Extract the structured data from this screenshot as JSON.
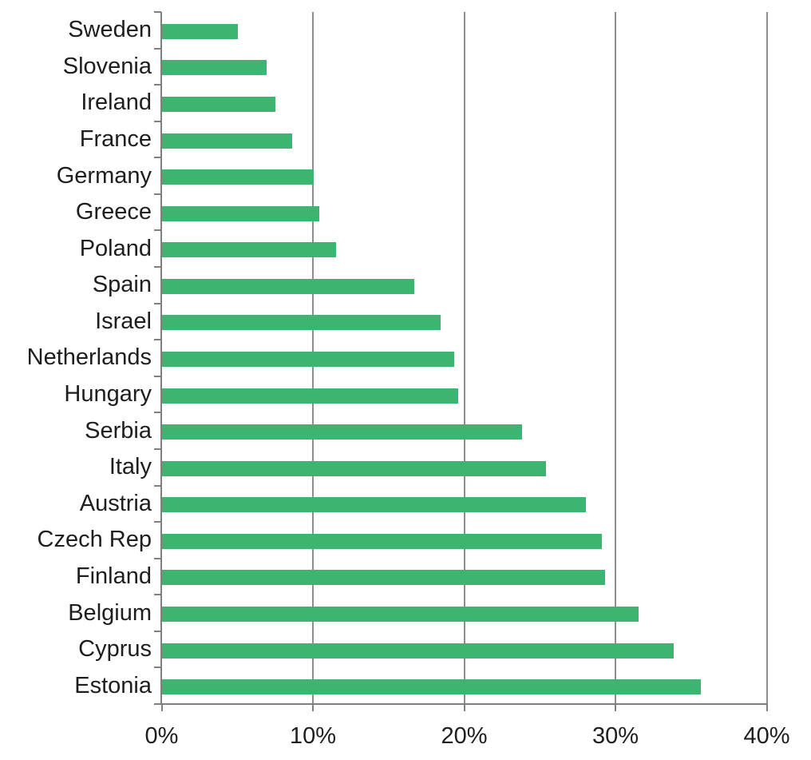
{
  "chart_data": {
    "type": "bar",
    "orientation": "horizontal",
    "title": "",
    "xlabel": "",
    "ylabel": "",
    "categories": [
      "Sweden",
      "Slovenia",
      "Ireland",
      "France",
      "Germany",
      "Greece",
      "Poland",
      "Spain",
      "Israel",
      "Netherlands",
      "Hungary",
      "Serbia",
      "Italy",
      "Austria",
      "Czech Rep",
      "Finland",
      "Belgium",
      "Cyprus",
      "Estonia"
    ],
    "values": [
      5.0,
      6.9,
      7.5,
      8.6,
      10.0,
      10.4,
      11.5,
      16.7,
      18.4,
      19.3,
      19.6,
      23.8,
      25.4,
      28.0,
      29.1,
      29.3,
      31.5,
      33.8,
      35.6
    ],
    "value_unit": "%",
    "xlim": [
      0,
      40
    ],
    "x_tick_values": [
      0,
      10,
      20,
      30,
      40
    ],
    "x_tick_labels": [
      "0%",
      "10%",
      "20%",
      "30%",
      "40%"
    ],
    "grid": true,
    "gridlines_at": [
      10,
      20,
      30,
      40
    ],
    "legend": false,
    "colors": {
      "bar": "#3EB471",
      "axis": "#7F7F7F",
      "gridline": "#8E8E8E",
      "text": "#1E1E1E",
      "background": "#FFFFFF"
    }
  }
}
